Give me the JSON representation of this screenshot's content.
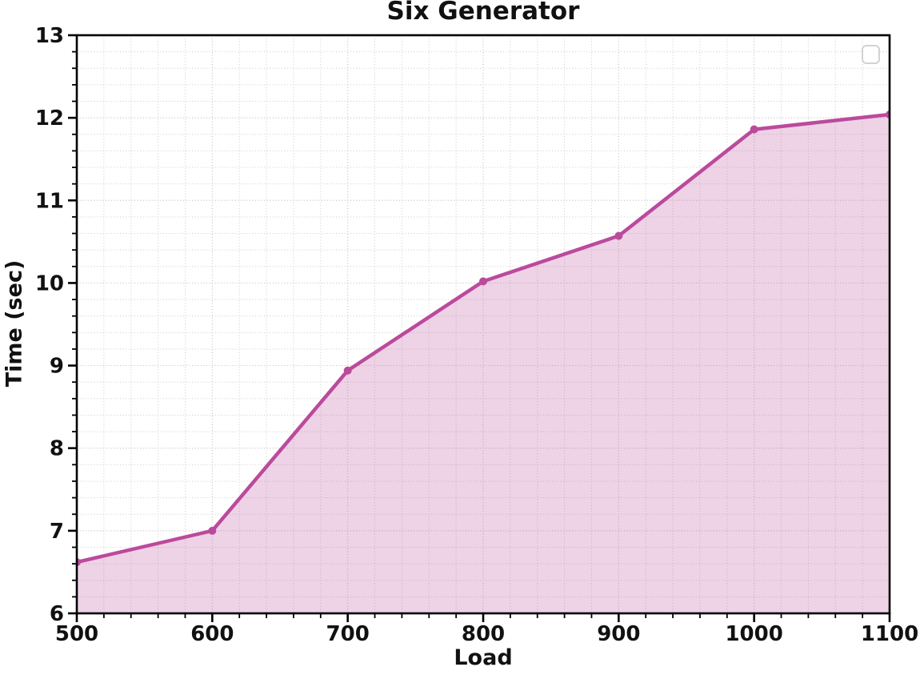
{
  "chart_data": {
    "type": "area",
    "title": "Six Generator",
    "xlabel": "Load",
    "ylabel": "Time (sec)",
    "x": [
      500,
      600,
      700,
      800,
      900,
      1000,
      1100
    ],
    "values": [
      6.62,
      7.0,
      8.94,
      10.02,
      10.57,
      11.86,
      12.04
    ],
    "xlim": [
      500,
      1100
    ],
    "ylim": [
      6,
      13
    ],
    "x_ticks": [
      500,
      600,
      700,
      800,
      900,
      1000,
      1100
    ],
    "y_ticks": [
      6,
      7,
      8,
      9,
      10,
      11,
      12,
      13
    ],
    "x_minor_step": 20,
    "y_minor_step": 0.2,
    "grid": "major and minor, dotted",
    "marker": "circle",
    "legend": {
      "position": "top-right",
      "items": []
    },
    "colors": {
      "line": "#bb4a9c",
      "fill": "rgba(188,74,156,0.25)",
      "grid_major": "#c2c2c2",
      "grid_minor": "#cbcbcb",
      "axis": "#000000",
      "text": "#111111"
    }
  }
}
